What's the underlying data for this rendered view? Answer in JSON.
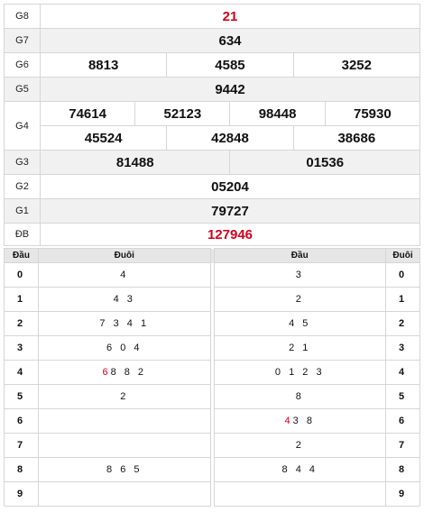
{
  "prizes": {
    "g8": {
      "label": "G8",
      "numbers": [
        "21"
      ]
    },
    "g7": {
      "label": "G7",
      "numbers": [
        "634"
      ]
    },
    "g6": {
      "label": "G6",
      "numbers": [
        "8813",
        "4585",
        "3252"
      ]
    },
    "g5": {
      "label": "G5",
      "numbers": [
        "9442"
      ]
    },
    "g4": {
      "label": "G4",
      "row1": [
        "74614",
        "52123",
        "98448",
        "75930"
      ],
      "row2": [
        "45524",
        "42848",
        "38686"
      ]
    },
    "g3": {
      "label": "G3",
      "numbers": [
        "81488",
        "01536"
      ]
    },
    "g2": {
      "label": "G2",
      "numbers": [
        "05204"
      ]
    },
    "g1": {
      "label": "G1",
      "numbers": [
        "79727"
      ]
    },
    "db": {
      "label": "ĐB",
      "numbers": [
        "127946"
      ]
    }
  },
  "loto": {
    "headers": {
      "dau_left": "Đầu",
      "duoi_left": "Đuôi",
      "dau_right": "Đầu",
      "duoi_right": "Đuôi"
    },
    "rows": [
      {
        "digit": "0",
        "duoi": "4",
        "dau": "3",
        "digit_r": "0"
      },
      {
        "digit": "1",
        "duoi": "4 3",
        "dau": "2",
        "digit_r": "1"
      },
      {
        "digit": "2",
        "duoi": "7 3 4 1",
        "dau": "4 5",
        "digit_r": "2"
      },
      {
        "digit": "3",
        "duoi": "6 0 4",
        "dau": "2 1",
        "digit_r": "3"
      },
      {
        "digit": "4",
        "duoi_hl": "6",
        "duoi": "8 8 2",
        "dau": "0 1 2 3",
        "digit_r": "4"
      },
      {
        "digit": "5",
        "duoi": "2",
        "dau": "8",
        "digit_r": "5"
      },
      {
        "digit": "6",
        "duoi": "",
        "dau_hl": "4",
        "dau": "3 8",
        "digit_r": "6"
      },
      {
        "digit": "7",
        "duoi": "",
        "dau": "2",
        "digit_r": "7"
      },
      {
        "digit": "8",
        "duoi": "8 6 5",
        "dau": "8 4 4",
        "digit_r": "8"
      },
      {
        "digit": "9",
        "duoi": "",
        "dau": "",
        "digit_r": "9"
      }
    ]
  },
  "colors": {
    "special": "#d0021b",
    "alt_row": "#f1f1f1",
    "header_bg": "#e6e6e6"
  }
}
